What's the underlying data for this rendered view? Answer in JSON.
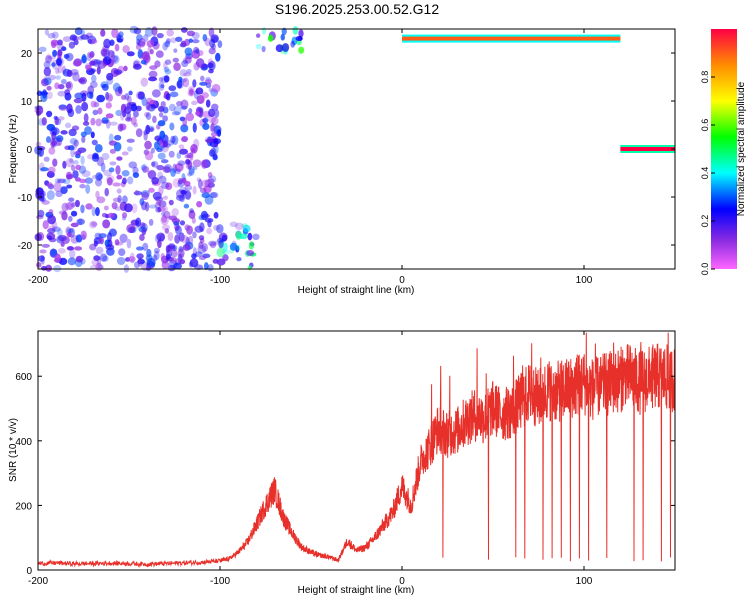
{
  "figure": {
    "title": "S196.2025.253.00.52.G12"
  },
  "colors": {
    "snr_line": "#e8302a",
    "axis": "#000000",
    "colormap": [
      "#ff00ff",
      "#8a2be2",
      "#0000ff",
      "#00ffff",
      "#00ff00",
      "#ffff00",
      "#ff8c00",
      "#ff0000"
    ],
    "spectrogram_low": "#d9c8f0"
  },
  "chart_data": [
    {
      "type": "heatmap",
      "xlabel": "Height of straight line (km)",
      "ylabel": "Frequency (Hz)",
      "xlim": [
        -200,
        150
      ],
      "ylim": [
        -25,
        25
      ],
      "x_ticks": [
        -200,
        -100,
        0,
        100
      ],
      "x_tick_labels": [
        "-200",
        "-100",
        "0",
        "100"
      ],
      "y_ticks": [
        -20,
        -10,
        0,
        10,
        20
      ],
      "y_tick_labels": [
        "-20",
        "-10",
        "0",
        "10",
        "20"
      ],
      "colorbar": {
        "label": "Normalized spectral amplitude",
        "range": [
          0,
          1
        ],
        "ticks": [
          0,
          0.2,
          0.4,
          0.6,
          0.8
        ],
        "tick_labels": [
          "0.0",
          "0.2",
          "0.4",
          "0.6",
          "0.8"
        ]
      },
      "features": [
        {
          "name": "noise",
          "x_range": [
            -200,
            -100
          ],
          "y_range": [
            -25,
            25
          ],
          "amplitude": 0.25
        },
        {
          "name": "lower band",
          "x_range": [
            -100,
            -80
          ],
          "y_range": [
            -25,
            -15
          ],
          "amplitude": 0.45
        },
        {
          "name": "upper band",
          "x_range": [
            -80,
            -55
          ],
          "y_range": [
            20,
            25
          ],
          "amplitude": 0.5
        },
        {
          "name": "strong line at 23 Hz",
          "x_range": [
            0,
            120
          ],
          "y": 23,
          "amplitude": 0.9
        },
        {
          "name": "line at 0 Hz",
          "x_range": [
            120,
            150
          ],
          "y": 0,
          "amplitude": 1.0
        }
      ]
    },
    {
      "type": "line",
      "xlabel": "Height of straight line (km)",
      "ylabel": "SNR (10 * v/v)",
      "xlim": [
        -200,
        150
      ],
      "ylim": [
        0,
        740
      ],
      "x_ticks": [
        -200,
        -100,
        0,
        100
      ],
      "x_tick_labels": [
        "-200",
        "-100",
        "0",
        "100"
      ],
      "y_ticks": [
        0,
        200,
        400,
        600
      ],
      "y_tick_labels": [
        "0",
        "200",
        "400",
        "600"
      ],
      "series": [
        {
          "x": [
            -200,
            -190,
            -180,
            -170,
            -160,
            -150,
            -140,
            -130,
            -120,
            -110,
            -100,
            -95,
            -90,
            -85,
            -80,
            -75,
            -70,
            -65,
            -60,
            -55,
            -50,
            -45,
            -40,
            -35,
            -30,
            -25,
            -20,
            -15,
            -10,
            -5,
            0,
            5,
            10,
            15,
            20,
            25,
            30,
            35,
            40,
            45,
            50,
            55,
            60,
            65,
            70,
            75,
            80,
            85,
            90,
            95,
            100,
            105,
            110,
            115,
            120,
            125,
            130,
            135,
            140,
            145,
            150
          ],
          "values": [
            20,
            22,
            19,
            20,
            21,
            20,
            18,
            20,
            22,
            24,
            28,
            35,
            55,
            85,
            140,
            200,
            250,
            160,
            110,
            70,
            55,
            45,
            40,
            30,
            90,
            60,
            70,
            100,
            140,
            180,
            260,
            200,
            330,
            380,
            440,
            420,
            430,
            460,
            480,
            470,
            500,
            480,
            490,
            520,
            550,
            530,
            560,
            550,
            560,
            570,
            580,
            560,
            570,
            580,
            590,
            600,
            580,
            590,
            600,
            595,
            590
          ]
        }
      ]
    }
  ]
}
